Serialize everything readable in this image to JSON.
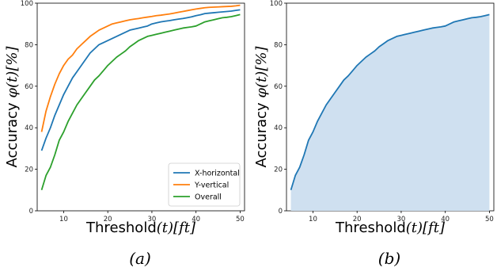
{
  "chart_data": [
    {
      "type": "line",
      "caption": "(a)",
      "xlabel_text": "Threshold",
      "xlabel_math": "(t)[ft]",
      "ylabel_text": "Accuracy ",
      "ylabel_math": "φ(t)[%]",
      "xlim": [
        4,
        51
      ],
      "ylim": [
        0,
        100
      ],
      "xticks": [
        10,
        20,
        30,
        40,
        50
      ],
      "yticks": [
        0,
        20,
        40,
        60,
        80,
        100
      ],
      "legend_position": "lower-right",
      "x": [
        5,
        6,
        7,
        8,
        9,
        10,
        11,
        12,
        13,
        14,
        15,
        16,
        17,
        18,
        19,
        20,
        21,
        22,
        23,
        24,
        25,
        26,
        27,
        28,
        29,
        30,
        31,
        32,
        33,
        34,
        35,
        36,
        37,
        38,
        39,
        40,
        41,
        42,
        43,
        44,
        45,
        46,
        47,
        48,
        49,
        50
      ],
      "series": [
        {
          "name": "X-horizontal",
          "color": "#1f77b4",
          "values": [
            29,
            35,
            40,
            46,
            51,
            56,
            60,
            64,
            67,
            70,
            73,
            76,
            78,
            80,
            81,
            82,
            83,
            84,
            85,
            86,
            87,
            87.5,
            88,
            88.5,
            89,
            90,
            90.5,
            91,
            91.3,
            91.6,
            92,
            92.3,
            92.6,
            93,
            93.4,
            94,
            94.4,
            95,
            95.2,
            95.4,
            95.6,
            95.8,
            96,
            96.2,
            96.5,
            96.8
          ]
        },
        {
          "name": "Y-vertical",
          "color": "#ff7f0e",
          "values": [
            38,
            48,
            55,
            61,
            66,
            70,
            73,
            75,
            78,
            80,
            82,
            84,
            85.5,
            87,
            88,
            89,
            90,
            90.5,
            91,
            91.5,
            92,
            92.3,
            92.6,
            93,
            93.3,
            93.6,
            94,
            94.2,
            94.5,
            94.8,
            95.2,
            95.6,
            96,
            96.4,
            96.8,
            97.2,
            97.5,
            97.8,
            98,
            98.1,
            98.2,
            98.3,
            98.4,
            98.5,
            98.7,
            99
          ]
        },
        {
          "name": "Overall",
          "color": "#2ca02c",
          "values": [
            10,
            17,
            21,
            27,
            34,
            38,
            43,
            47,
            51,
            54,
            57,
            60,
            63,
            65,
            67.5,
            70,
            72,
            74,
            75.5,
            77,
            79,
            80.5,
            82,
            83,
            84,
            84.5,
            85,
            85.5,
            86,
            86.5,
            87,
            87.5,
            88,
            88.3,
            88.6,
            89,
            90,
            91,
            91.5,
            92,
            92.5,
            93,
            93.2,
            93.5,
            94,
            94.5
          ]
        }
      ]
    },
    {
      "type": "area",
      "caption": "(b)",
      "xlabel_text": "Threshold",
      "xlabel_math": "(t)[ft]",
      "ylabel_text": "Accuracy ",
      "ylabel_math": "φ(t)[%]",
      "xlim": [
        4,
        51
      ],
      "ylim": [
        0,
        100
      ],
      "xticks": [
        10,
        20,
        30,
        40,
        50
      ],
      "yticks": [
        0,
        20,
        40,
        60,
        80,
        100
      ],
      "x": [
        5,
        6,
        7,
        8,
        9,
        10,
        11,
        12,
        13,
        14,
        15,
        16,
        17,
        18,
        19,
        20,
        21,
        22,
        23,
        24,
        25,
        26,
        27,
        28,
        29,
        30,
        31,
        32,
        33,
        34,
        35,
        36,
        37,
        38,
        39,
        40,
        41,
        42,
        43,
        44,
        45,
        46,
        47,
        48,
        49,
        50
      ],
      "series": [
        {
          "color": "#1f77b4",
          "fill": "#cfe0f0",
          "values": [
            10,
            17,
            21,
            27,
            34,
            38,
            43,
            47,
            51,
            54,
            57,
            60,
            63,
            65,
            67.5,
            70,
            72,
            74,
            75.5,
            77,
            79,
            80.5,
            82,
            83,
            84,
            84.5,
            85,
            85.5,
            86,
            86.5,
            87,
            87.5,
            88,
            88.3,
            88.6,
            89,
            90,
            91,
            91.5,
            92,
            92.5,
            93,
            93.2,
            93.5,
            94,
            94.5
          ]
        }
      ]
    }
  ]
}
